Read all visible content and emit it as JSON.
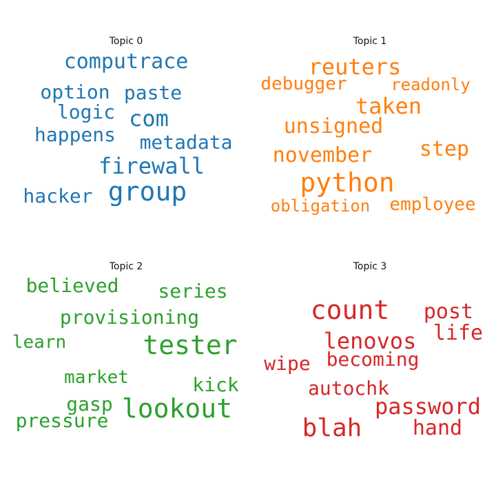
{
  "chart_data": {
    "type": "wordcloud",
    "panels": [
      {
        "title": "Topic 0",
        "color": "#1f77b4",
        "words": [
          "computrace",
          "option",
          "paste",
          "logic",
          "com",
          "happens",
          "metadata",
          "firewall",
          "group",
          "hacker"
        ]
      },
      {
        "title": "Topic 1",
        "color": "#ff7f0e",
        "words": [
          "reuters",
          "debugger",
          "readonly",
          "taken",
          "unsigned",
          "step",
          "november",
          "python",
          "obligation",
          "employee"
        ]
      },
      {
        "title": "Topic 2",
        "color": "#2ca02c",
        "words": [
          "believed",
          "series",
          "provisioning",
          "learn",
          "tester",
          "market",
          "kick",
          "gasp",
          "lookout",
          "pressure"
        ]
      },
      {
        "title": "Topic 3",
        "color": "#d62728",
        "words": [
          "count",
          "post",
          "life",
          "lenovos",
          "wipe",
          "becoming",
          "autochk",
          "password",
          "blah",
          "hand"
        ]
      }
    ]
  }
}
